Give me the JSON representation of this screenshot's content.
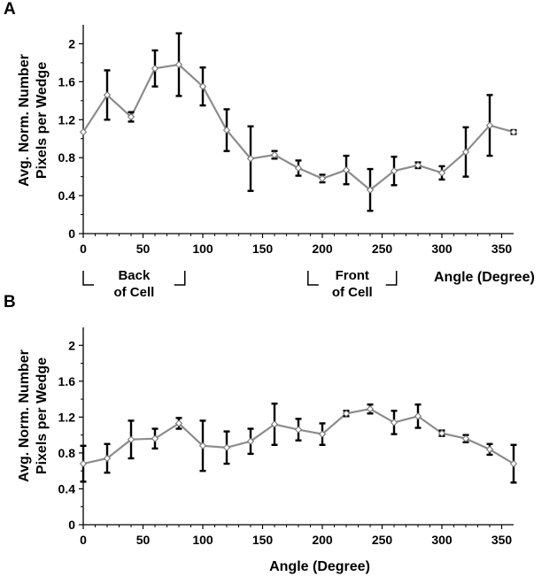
{
  "chart_data": [
    {
      "panel": "A",
      "type": "line",
      "ylabel_lines": [
        "Avg. Norm. Number",
        "Pixels per Wedge"
      ],
      "xlabel": "Angle (Degree)",
      "xlim": [
        0,
        360
      ],
      "ylim": [
        0,
        2.2
      ],
      "xticks": [
        0,
        50,
        100,
        150,
        200,
        250,
        300,
        350
      ],
      "yticks": [
        0,
        0.4,
        0.8,
        1.2,
        1.6,
        2
      ],
      "ytick_labels": [
        "0",
        "0.4",
        "0.8",
        "1.2",
        "1.6",
        "2"
      ],
      "line_color": "#8c8c8c",
      "x": [
        0,
        20,
        40,
        60,
        80,
        100,
        120,
        140,
        160,
        180,
        200,
        220,
        240,
        260,
        280,
        300,
        320,
        340,
        360
      ],
      "y": [
        1.07,
        1.46,
        1.23,
        1.74,
        1.78,
        1.55,
        1.09,
        0.79,
        0.83,
        0.69,
        0.58,
        0.67,
        0.46,
        0.66,
        0.72,
        0.64,
        0.86,
        1.14,
        1.07
      ],
      "err": [
        0.0,
        0.26,
        0.05,
        0.19,
        0.33,
        0.2,
        0.22,
        0.34,
        0.04,
        0.08,
        0.04,
        0.15,
        0.22,
        0.15,
        0.03,
        0.07,
        0.26,
        0.32,
        0.02
      ],
      "annotations": [
        {
          "lines": [
            "Back",
            "of Cell"
          ],
          "bracket": [
            0,
            85
          ]
        },
        {
          "lines": [
            "Front",
            "of Cell"
          ],
          "bracket": [
            188,
            262
          ]
        }
      ]
    },
    {
      "panel": "B",
      "type": "line",
      "ylabel_lines": [
        "Avg. Norm. Number",
        "Pixels per Wedge"
      ],
      "xlabel": "Angle (Degree)",
      "xlim": [
        0,
        360
      ],
      "ylim": [
        0,
        2.2
      ],
      "xticks": [
        0,
        50,
        100,
        150,
        200,
        250,
        300,
        350
      ],
      "yticks": [
        0,
        0.4,
        0.8,
        1.2,
        1.6,
        2
      ],
      "ytick_labels": [
        "0",
        "0.4",
        "0.8",
        "1.2",
        "1.6",
        "2"
      ],
      "line_color": "#8c8c8c",
      "x": [
        0,
        20,
        40,
        60,
        80,
        100,
        120,
        140,
        160,
        180,
        200,
        220,
        240,
        260,
        280,
        300,
        320,
        340,
        360
      ],
      "y": [
        0.68,
        0.74,
        0.95,
        0.96,
        1.13,
        0.88,
        0.86,
        0.93,
        1.12,
        1.06,
        1.01,
        1.24,
        1.29,
        1.14,
        1.21,
        1.02,
        0.96,
        0.84,
        0.68
      ],
      "err": [
        0.2,
        0.16,
        0.21,
        0.11,
        0.06,
        0.28,
        0.18,
        0.14,
        0.23,
        0.12,
        0.12,
        0.03,
        0.05,
        0.13,
        0.13,
        0.03,
        0.04,
        0.06,
        0.21
      ]
    }
  ]
}
